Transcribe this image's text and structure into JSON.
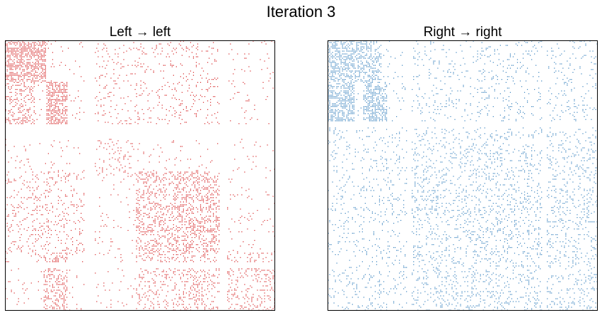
{
  "title": "Iteration 3",
  "chart_data": [
    {
      "type": "heatmap",
      "title": "Left → left",
      "color": "#d62728",
      "xlabel": "",
      "ylabel": "",
      "ticks": false,
      "grid": false,
      "dense_blocks": [
        {
          "r": [
            0.0,
            0.15
          ],
          "c": [
            0.0,
            0.15
          ],
          "density": 0.55
        },
        {
          "r": [
            0.15,
            0.31
          ],
          "c": [
            0.15,
            0.23
          ],
          "density": 0.6
        },
        {
          "r": [
            0.15,
            0.31
          ],
          "c": [
            0.0,
            0.11
          ],
          "density": 0.3
        },
        {
          "r": [
            0.0,
            0.31
          ],
          "c": [
            0.3,
            0.8
          ],
          "density": 0.08
        },
        {
          "r": [
            0.3,
            0.5
          ],
          "c": [
            0.3,
            0.5
          ],
          "density": 0.12
        },
        {
          "r": [
            0.48,
            0.78
          ],
          "c": [
            0.48,
            0.8
          ],
          "density": 0.3
        },
        {
          "r": [
            0.78,
            1.0
          ],
          "c": [
            0.48,
            1.0
          ],
          "density": 0.2
        },
        {
          "r": [
            0.48,
            0.78
          ],
          "c": [
            0.0,
            0.3
          ],
          "density": 0.12
        },
        {
          "r": [
            0.78,
            1.0
          ],
          "c": [
            0.14,
            0.23
          ],
          "density": 0.35
        }
      ],
      "gaps": {
        "rows": [
          [
            0.31,
            0.36
          ],
          [
            0.82,
            0.84
          ]
        ],
        "cols": [
          [
            0.29,
            0.33
          ],
          [
            0.79,
            0.82
          ]
        ]
      },
      "background_density": 0.035
    },
    {
      "type": "heatmap",
      "title": "Right → right",
      "color": "#3b84bf",
      "xlabel": "",
      "ylabel": "",
      "ticks": false,
      "grid": false,
      "dense_blocks": [
        {
          "r": [
            0.0,
            0.3
          ],
          "c": [
            0.0,
            0.1
          ],
          "density": 0.5
        },
        {
          "r": [
            0.0,
            0.15
          ],
          "c": [
            0.1,
            0.2
          ],
          "density": 0.4
        },
        {
          "r": [
            0.15,
            0.3
          ],
          "c": [
            0.13,
            0.22
          ],
          "density": 0.5
        },
        {
          "r": [
            0.0,
            0.3
          ],
          "c": [
            0.3,
            1.0
          ],
          "density": 0.08
        },
        {
          "r": [
            0.3,
            1.0
          ],
          "c": [
            0.3,
            1.0
          ],
          "density": 0.14
        },
        {
          "r": [
            0.3,
            1.0
          ],
          "c": [
            0.0,
            0.3
          ],
          "density": 0.09
        }
      ],
      "gaps": {
        "rows": [
          [
            0.3,
            0.32
          ]
        ],
        "cols": [
          [
            0.29,
            0.31
          ],
          [
            0.79,
            0.81
          ]
        ]
      },
      "background_density": 0.04
    }
  ]
}
